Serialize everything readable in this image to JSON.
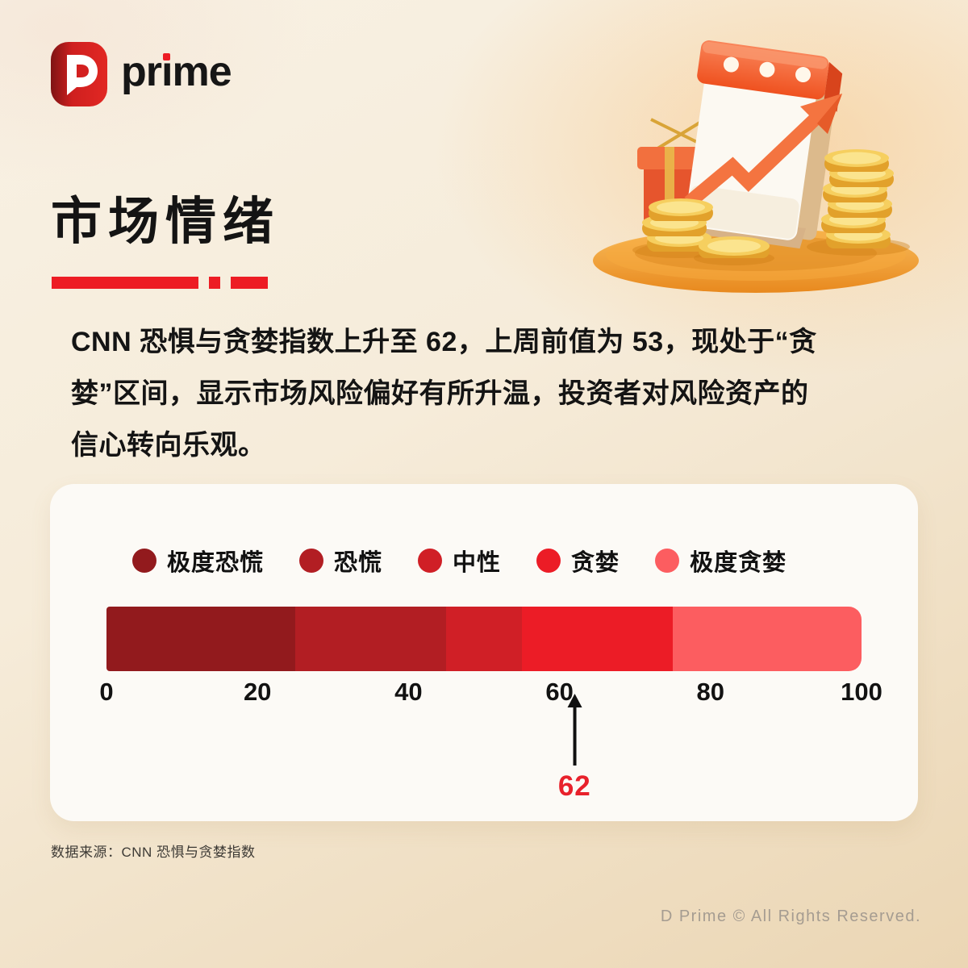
{
  "theme": {
    "accent": "#ED1C24",
    "card_bg": "#FCFAF6",
    "text": "#141414"
  },
  "brand": {
    "logo_letter": "D",
    "logo_text": "prime"
  },
  "header": {
    "title": "市场情绪"
  },
  "intro": {
    "lines": [
      "CNN 恐惧与贪婪指数上升至 62，上周前值为 53，现处于“贪",
      "婪”区间，显示市场风险偏好有所升温，投资者对风险资产的",
      "信心转向乐观。"
    ]
  },
  "chart_data": {
    "type": "bar",
    "subtype": "horizontal-stacked-gauge",
    "title": "CNN 恐惧与贪婪指数",
    "legend_position": "top",
    "grid": false,
    "segments": [
      {
        "label": "极度恐慌",
        "range": [
          0,
          25
        ],
        "color": "#921A1D"
      },
      {
        "label": "恐慌",
        "range": [
          25,
          45
        ],
        "color": "#B21E23"
      },
      {
        "label": "中性",
        "range": [
          45,
          55
        ],
        "color": "#D01F26"
      },
      {
        "label": "贪婪",
        "range": [
          55,
          75
        ],
        "color": "#EC1C26"
      },
      {
        "label": "极度贪婪",
        "range": [
          75,
          100
        ],
        "color": "#FC5D60"
      }
    ],
    "axis": {
      "min": 0,
      "max": 100,
      "ticks": [
        0,
        20,
        40,
        60,
        80,
        100
      ]
    },
    "marker": {
      "value": 62,
      "label": "62",
      "color": "#E8212B",
      "previous_value": 53
    }
  },
  "footer": {
    "source": "数据来源：CNN 恐惧与贪婪指数",
    "copyright": "D Prime © All Rights Reserved."
  },
  "illustration": {
    "name": "calendar-coins-growth-arrow"
  }
}
